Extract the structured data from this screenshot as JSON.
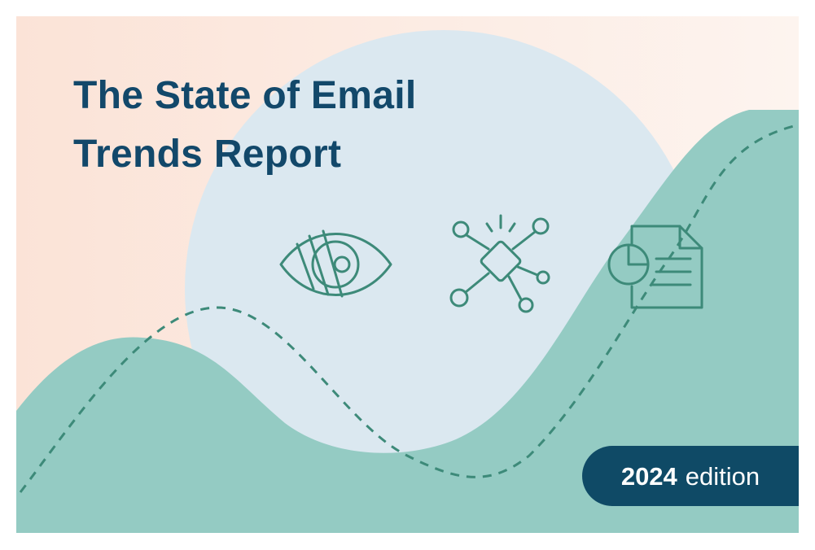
{
  "title": [
    "The State of Email",
    "Trends Report"
  ],
  "badge": {
    "year": "2024",
    "label": "edition"
  }
}
